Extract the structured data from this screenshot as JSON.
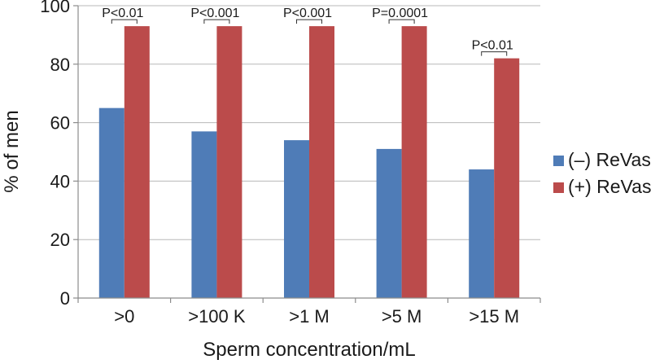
{
  "chart_data": {
    "type": "bar",
    "title": "",
    "xlabel": "Sperm concentration/mL",
    "ylabel": "% of men",
    "categories": [
      ">0",
      ">100 K",
      ">1 M",
      ">5 M",
      ">15 M"
    ],
    "ylim": [
      0,
      100
    ],
    "yticks": [
      "0",
      "20",
      "40",
      "60",
      "80",
      "100"
    ],
    "grid": true,
    "legend_position": "right",
    "series": [
      {
        "name": "(–) ReVas",
        "color": "#4f7cb7",
        "values": [
          65,
          57,
          54,
          51,
          44
        ]
      },
      {
        "name": "(+) ReVas",
        "color": "#bb4b4b",
        "values": [
          93,
          93,
          93,
          93,
          82
        ]
      }
    ],
    "annotations": [
      "P<0.01",
      "P<0.001",
      "P<0.001",
      "P=0.0001",
      "P<0.01"
    ]
  }
}
